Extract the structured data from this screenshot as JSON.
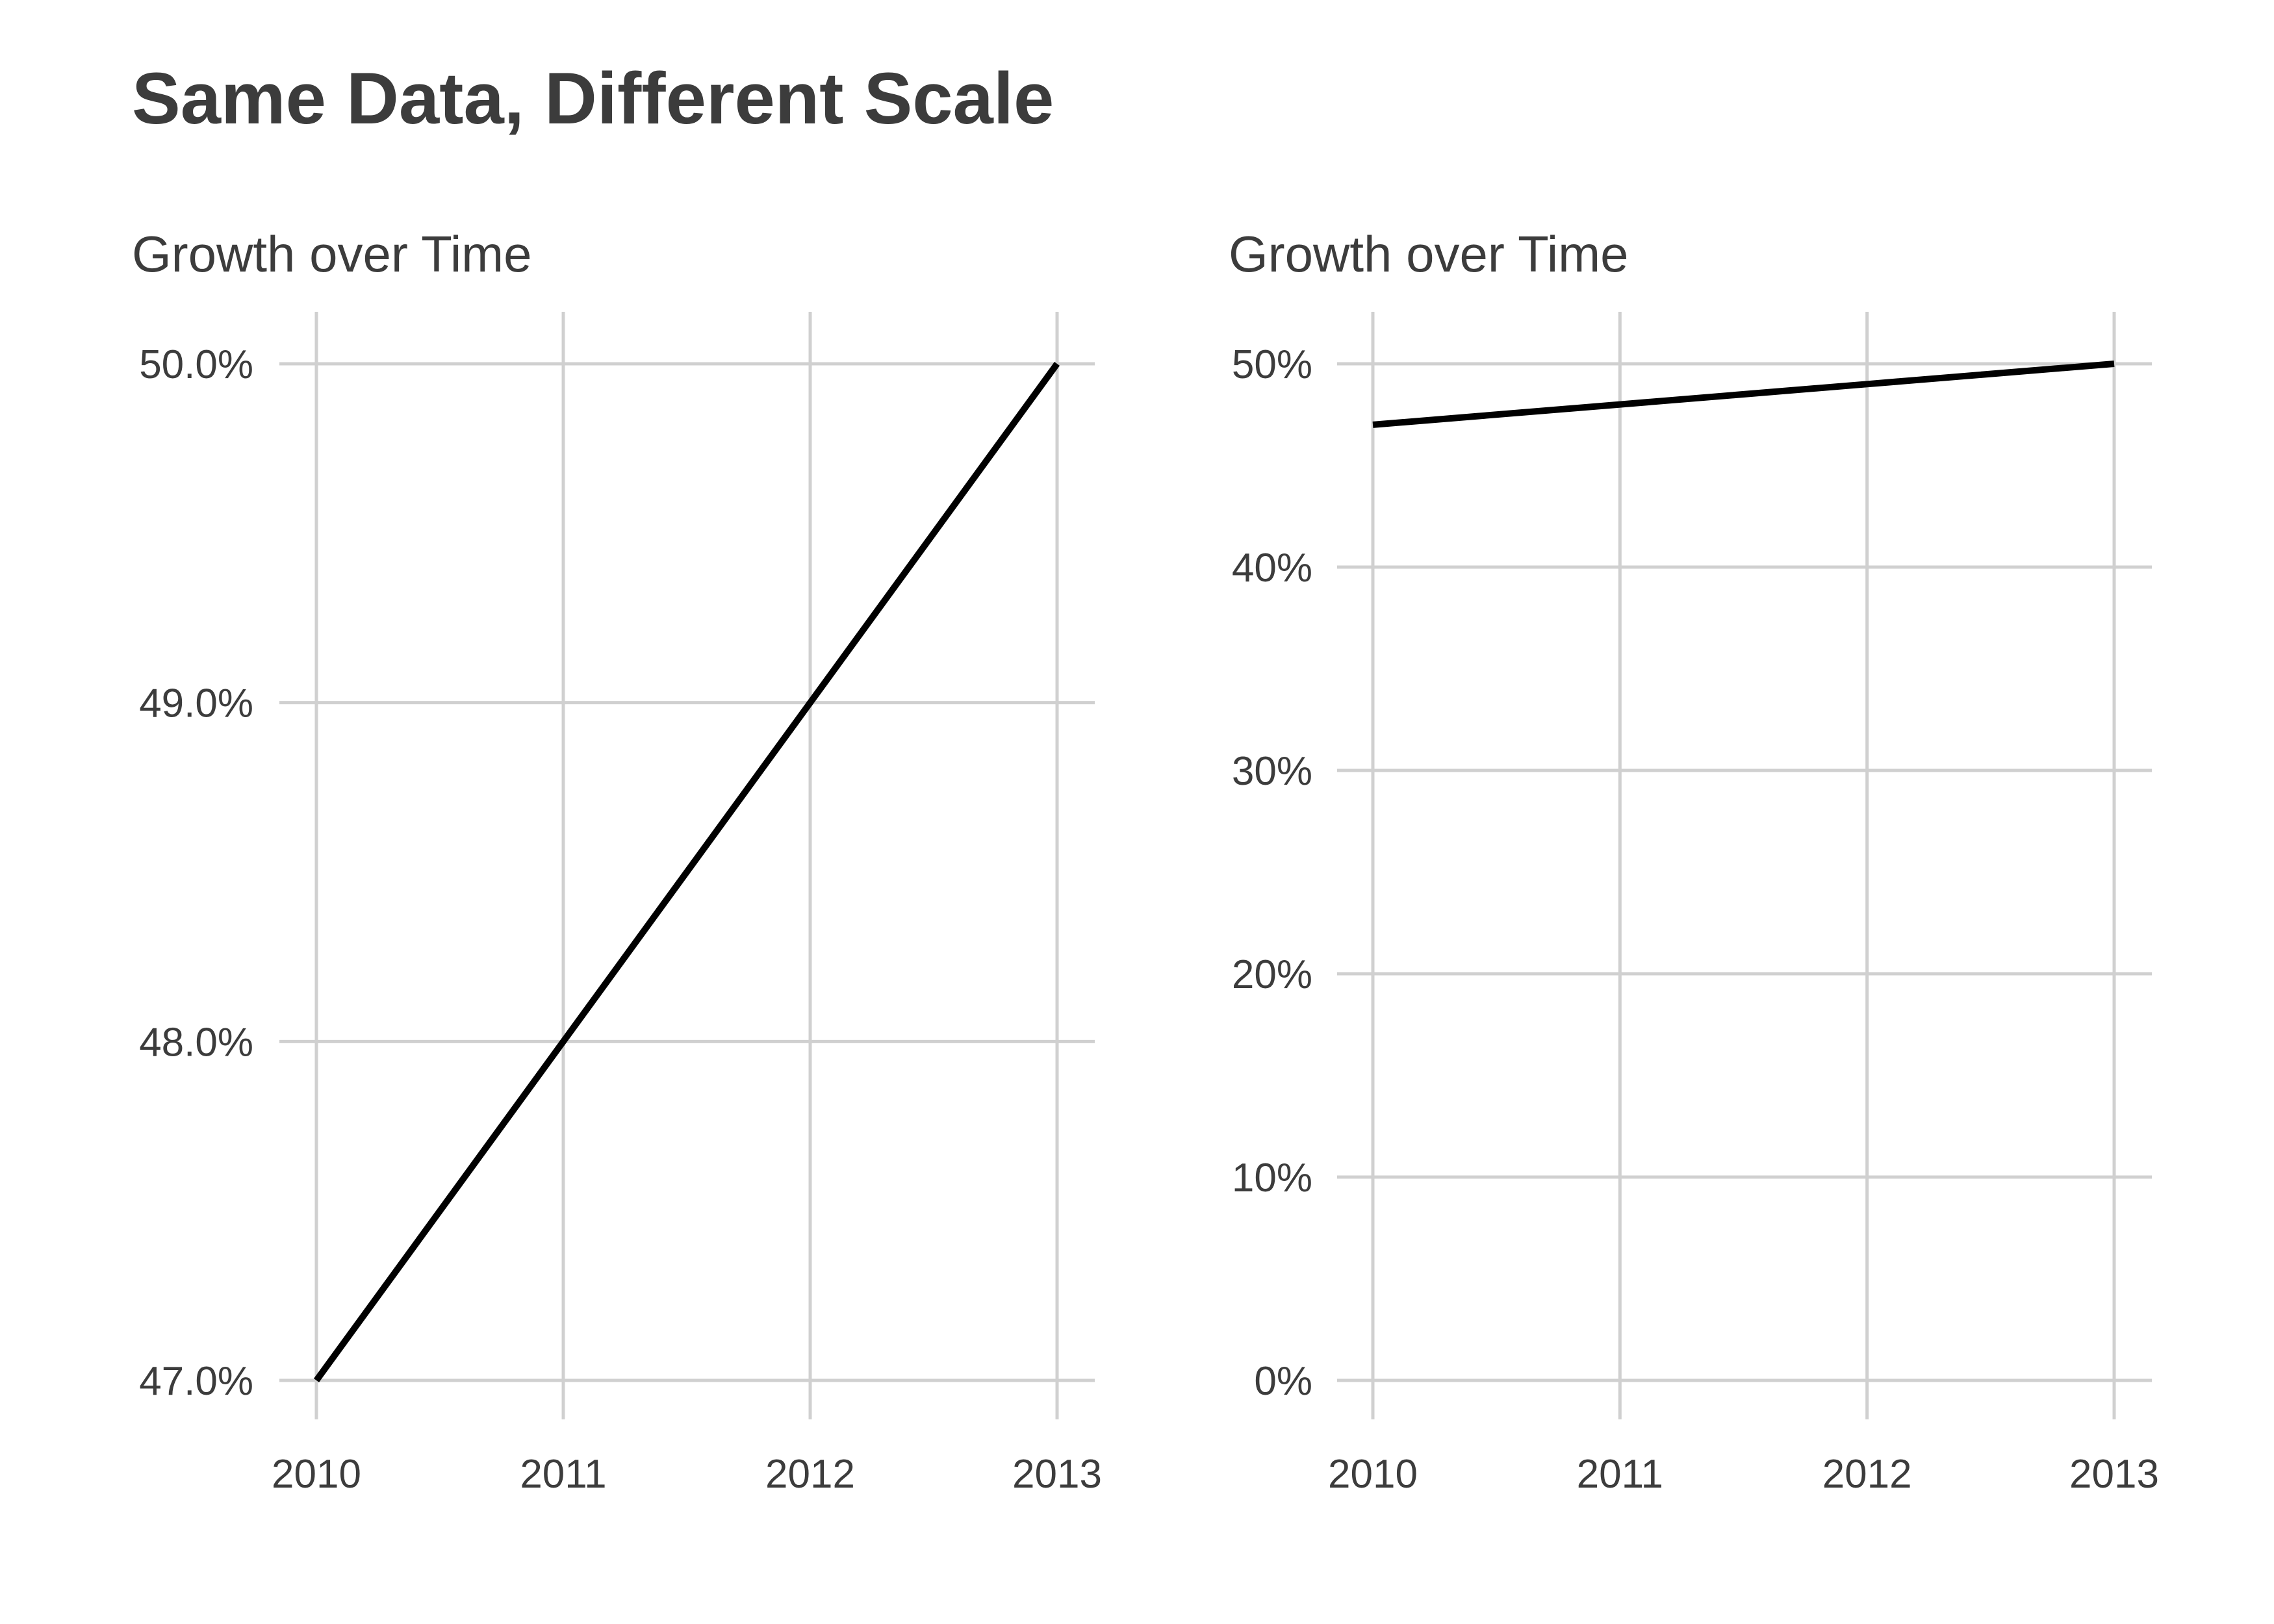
{
  "title": "Same Data, Different Scale",
  "chart_data": [
    {
      "type": "line",
      "title": "Growth over Time",
      "xlabel": "",
      "ylabel": "",
      "x": [
        2010,
        2011,
        2012,
        2013
      ],
      "series": [
        {
          "values": [
            0.47,
            0.48,
            0.49,
            0.5
          ]
        }
      ],
      "xlim": [
        2010,
        2013
      ],
      "ylim": [
        0.47,
        0.5
      ],
      "x_ticks": [
        "2010",
        "2011",
        "2012",
        "2013"
      ],
      "y_ticks": [
        {
          "value": 0.47,
          "label": "47.0%"
        },
        {
          "value": 0.48,
          "label": "48.0%"
        },
        {
          "value": 0.49,
          "label": "49.0%"
        },
        {
          "value": 0.5,
          "label": "50.0%"
        }
      ],
      "grid": true,
      "line_color": "#000000",
      "grid_color": "#d0d0d0"
    },
    {
      "type": "line",
      "title": "Growth over Time",
      "xlabel": "",
      "ylabel": "",
      "x": [
        2010,
        2011,
        2012,
        2013
      ],
      "series": [
        {
          "values": [
            0.47,
            0.48,
            0.49,
            0.5
          ]
        }
      ],
      "xlim": [
        2010,
        2013
      ],
      "ylim": [
        0,
        0.5
      ],
      "x_ticks": [
        "2010",
        "2011",
        "2012",
        "2013"
      ],
      "y_ticks": [
        {
          "value": 0.0,
          "label": "0%"
        },
        {
          "value": 0.1,
          "label": "10%"
        },
        {
          "value": 0.2,
          "label": "20%"
        },
        {
          "value": 0.3,
          "label": "30%"
        },
        {
          "value": 0.4,
          "label": "40%"
        },
        {
          "value": 0.5,
          "label": "50%"
        }
      ],
      "grid": true,
      "line_color": "#000000",
      "grid_color": "#d0d0d0"
    }
  ]
}
